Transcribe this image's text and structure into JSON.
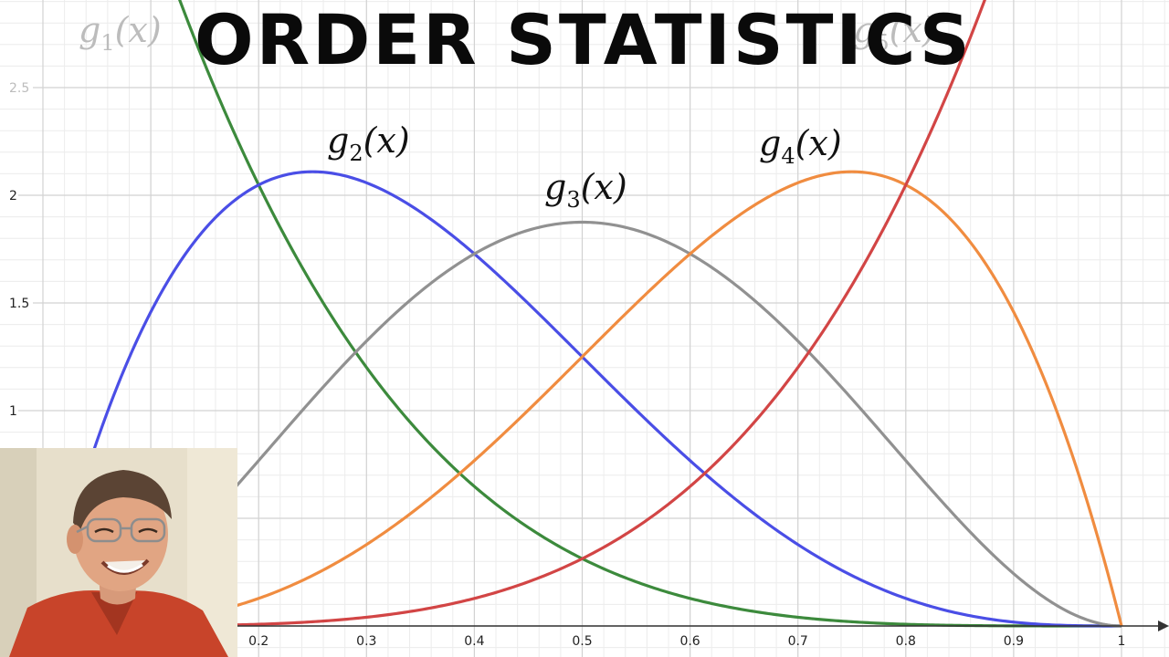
{
  "title": "ORDER STATISTICS",
  "chart_data": {
    "type": "line",
    "xlim": [
      0,
      1
    ],
    "ylim": [
      0,
      2.9
    ],
    "x_ticks": [
      "0.2",
      "0.3",
      "0.4",
      "0.5",
      "0.6",
      "0.7",
      "0.8",
      "0.9",
      "1"
    ],
    "y_ticks": [
      "1",
      "1.5",
      "2",
      "2.5"
    ],
    "grid": true,
    "series": [
      {
        "name": "g_1(x)",
        "label_main": "g",
        "label_sub": "1",
        "label_arg": "(x)",
        "formula": "5(1-x)^4",
        "color": "#3c8a3c",
        "faded": true
      },
      {
        "name": "g_2(x)",
        "label_main": "g",
        "label_sub": "2",
        "label_arg": "(x)",
        "formula": "20x(1-x)^3",
        "color": "#4a4ee6",
        "faded": false
      },
      {
        "name": "g_3(x)",
        "label_main": "g",
        "label_sub": "3",
        "label_arg": "(x)",
        "formula": "30x^2(1-x)^2",
        "color": "#919191",
        "faded": false
      },
      {
        "name": "g_4(x)",
        "label_main": "g",
        "label_sub": "4",
        "label_arg": "(x)",
        "formula": "20x^3(1-x)",
        "color": "#f08c40",
        "faded": false
      },
      {
        "name": "g_5(x)",
        "label_main": "g",
        "label_sub": "5",
        "label_arg": "(x)",
        "formula": "5x^4",
        "color": "#d24545",
        "faded": true
      }
    ]
  }
}
